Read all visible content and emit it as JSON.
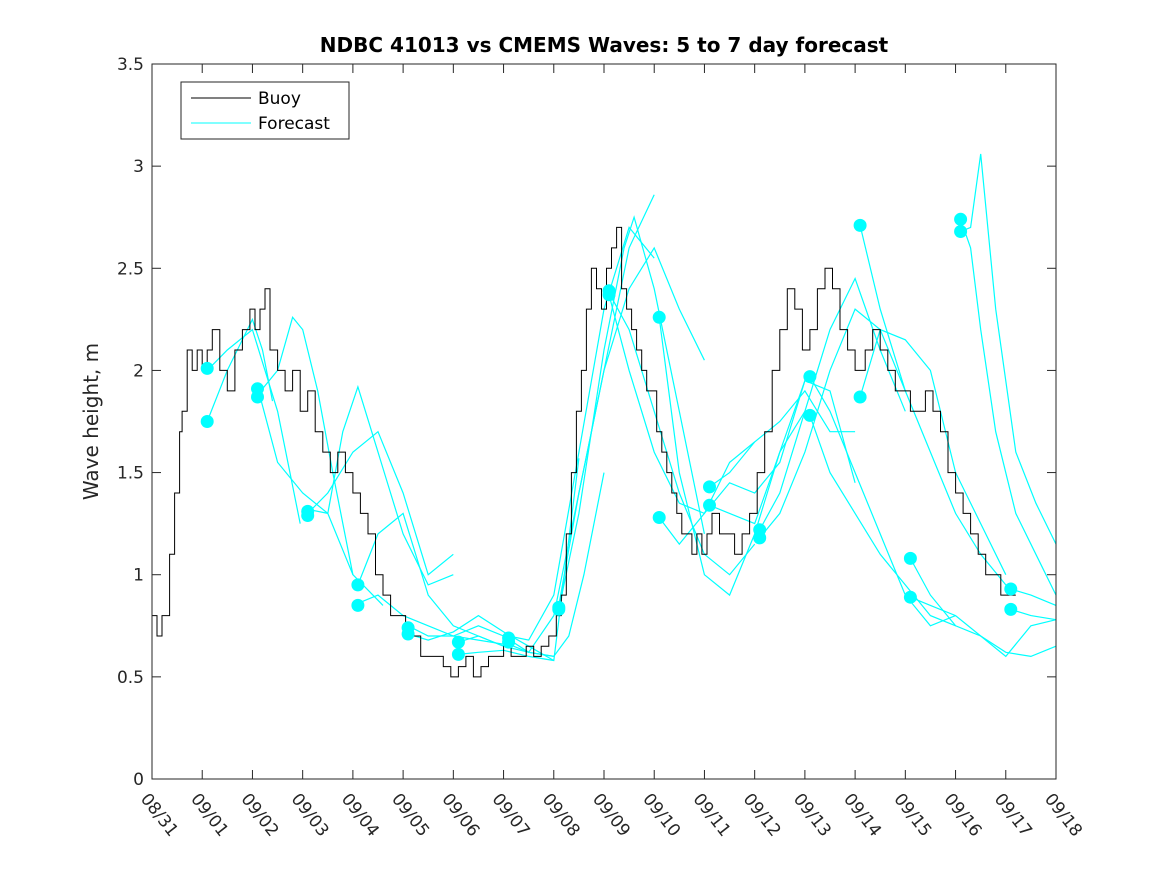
{
  "chart_data": {
    "type": "line",
    "title": "NDBC 41013 vs CMEMS Waves: 5 to 7 day forecast",
    "xlabel": "",
    "ylabel": "Wave height, m",
    "xlim": [
      0,
      18
    ],
    "ylim": [
      0,
      3.5
    ],
    "yticks": [
      0,
      0.5,
      1,
      1.5,
      2,
      2.5,
      3,
      3.5
    ],
    "ytick_labels": [
      "0",
      "0.5",
      "1",
      "1.5",
      "2",
      "2.5",
      "3",
      "3.5"
    ],
    "xticks": [
      0,
      1,
      2,
      3,
      4,
      5,
      6,
      7,
      8,
      9,
      10,
      11,
      12,
      13,
      14,
      15,
      16,
      17,
      18
    ],
    "xtick_labels": [
      "08/31",
      "09/01",
      "09/02",
      "09/03",
      "09/04",
      "09/05",
      "09/06",
      "09/07",
      "09/08",
      "09/09",
      "09/10",
      "09/11",
      "09/12",
      "09/13",
      "09/14",
      "09/15",
      "09/16",
      "09/17",
      "09/18"
    ],
    "legend": {
      "position": "top-left",
      "entries": [
        "Buoy",
        "Forecast"
      ]
    },
    "colors": {
      "buoy": "#000000",
      "forecast": "#00FFFF",
      "axes": "#262626"
    },
    "buoy": {
      "name": "Buoy",
      "x": [
        0,
        0.1,
        0.2,
        0.35,
        0.45,
        0.55,
        0.6,
        0.7,
        0.8,
        0.9,
        1.0,
        1.1,
        1.2,
        1.35,
        1.5,
        1.65,
        1.8,
        1.95,
        2.05,
        2.15,
        2.25,
        2.35,
        2.5,
        2.65,
        2.8,
        2.95,
        3.1,
        3.25,
        3.4,
        3.55,
        3.7,
        3.85,
        4.0,
        4.15,
        4.3,
        4.45,
        4.6,
        4.75,
        4.9,
        5.05,
        5.2,
        5.35,
        5.5,
        5.65,
        5.8,
        5.95,
        6.1,
        6.25,
        6.4,
        6.55,
        6.7,
        6.85,
        7.0,
        7.15,
        7.3,
        7.45,
        7.6,
        7.75,
        7.9,
        8.05,
        8.15,
        8.25,
        8.35,
        8.45,
        8.55,
        8.65,
        8.75,
        8.85,
        8.95,
        9.05,
        9.15,
        9.25,
        9.35,
        9.45,
        9.55,
        9.65,
        9.75,
        9.85,
        9.95,
        10.05,
        10.15,
        10.25,
        10.35,
        10.45,
        10.55,
        10.65,
        10.75,
        10.85,
        10.95,
        11.05,
        11.15,
        11.3,
        11.45,
        11.6,
        11.75,
        11.9,
        12.05,
        12.2,
        12.35,
        12.5,
        12.65,
        12.8,
        12.95,
        13.1,
        13.25,
        13.4,
        13.55,
        13.7,
        13.85,
        14.0,
        14.1,
        14.2,
        14.35,
        14.5,
        14.65,
        14.8,
        14.95,
        15.1,
        15.25,
        15.4,
        15.55,
        15.7,
        15.85,
        16.0,
        16.15,
        16.3,
        16.45,
        16.6,
        16.75,
        16.9,
        17.05,
        17.2
      ],
      "y": [
        0.8,
        0.7,
        0.8,
        1.1,
        1.4,
        1.7,
        1.8,
        2.1,
        2.0,
        2.1,
        2.0,
        2.1,
        2.2,
        2.0,
        1.9,
        2.1,
        2.2,
        2.3,
        2.2,
        2.3,
        2.4,
        2.1,
        2.0,
        1.9,
        2.0,
        1.8,
        1.9,
        1.7,
        1.6,
        1.5,
        1.6,
        1.5,
        1.4,
        1.3,
        1.2,
        1.0,
        0.9,
        0.8,
        0.8,
        0.7,
        0.7,
        0.6,
        0.6,
        0.6,
        0.55,
        0.5,
        0.55,
        0.6,
        0.5,
        0.55,
        0.6,
        0.6,
        0.65,
        0.6,
        0.6,
        0.65,
        0.6,
        0.65,
        0.7,
        0.8,
        0.9,
        1.2,
        1.5,
        1.8,
        2.0,
        2.3,
        2.5,
        2.4,
        2.3,
        2.5,
        2.6,
        2.7,
        2.4,
        2.3,
        2.2,
        2.1,
        2.0,
        1.9,
        1.9,
        1.7,
        1.6,
        1.5,
        1.4,
        1.3,
        1.2,
        1.2,
        1.1,
        1.2,
        1.1,
        1.2,
        1.3,
        1.2,
        1.2,
        1.1,
        1.2,
        1.3,
        1.5,
        1.7,
        2.0,
        2.2,
        2.4,
        2.3,
        2.1,
        2.2,
        2.4,
        2.5,
        2.4,
        2.2,
        2.1,
        2.0,
        2.0,
        2.1,
        2.2,
        2.1,
        2.0,
        1.9,
        1.9,
        1.8,
        1.8,
        1.9,
        1.8,
        1.7,
        1.5,
        1.4,
        1.3,
        1.2,
        1.1,
        1.0,
        1.0,
        0.9,
        0.9,
        0.9
      ]
    },
    "forecast": {
      "name": "Forecast",
      "lines": [
        {
          "x": [
            1.1,
            1.5,
            2.0,
            2.5,
            2.95
          ],
          "y": [
            2.0,
            2.1,
            2.2,
            1.8,
            1.25
          ]
        },
        {
          "x": [
            1.1,
            1.5,
            2.0,
            2.2,
            2.4
          ],
          "y": [
            1.75,
            2.0,
            2.25,
            2.1,
            1.85
          ]
        },
        {
          "x": [
            2.1,
            2.5,
            3.0,
            3.5,
            4.0,
            4.6
          ],
          "y": [
            1.92,
            1.55,
            1.4,
            1.3,
            1.0,
            0.85
          ]
        },
        {
          "x": [
            2.1,
            2.5,
            2.8,
            3.0,
            3.3,
            3.6,
            4.0
          ],
          "y": [
            1.88,
            2.0,
            2.26,
            2.2,
            1.9,
            1.5,
            1.0
          ]
        },
        {
          "x": [
            3.1,
            3.5,
            4.0,
            4.5,
            5.0,
            5.5,
            6.0
          ],
          "y": [
            1.3,
            1.4,
            1.6,
            1.7,
            1.4,
            1.0,
            1.1
          ]
        },
        {
          "x": [
            3.1,
            3.5,
            3.8,
            4.1,
            4.5,
            5.0,
            5.5,
            6.0
          ],
          "y": [
            1.32,
            1.3,
            1.7,
            1.92,
            1.6,
            1.2,
            0.95,
            1.0
          ]
        },
        {
          "x": [
            4.1,
            4.5,
            5.0,
            5.5,
            6.0,
            6.5,
            7.0
          ],
          "y": [
            0.95,
            1.2,
            1.3,
            0.9,
            0.75,
            0.7,
            0.65
          ]
        },
        {
          "x": [
            4.1,
            4.5,
            5.0,
            5.5,
            6.0,
            6.5,
            7.0
          ],
          "y": [
            0.86,
            0.9,
            0.8,
            0.75,
            0.7,
            0.68,
            0.66
          ]
        },
        {
          "x": [
            5.1,
            5.5,
            6.0,
            6.5,
            7.0,
            7.5,
            8.0
          ],
          "y": [
            0.75,
            0.7,
            0.7,
            0.75,
            0.7,
            0.62,
            0.6
          ]
        },
        {
          "x": [
            5.1,
            5.5,
            6.0,
            6.5,
            7.0,
            7.5,
            8.0
          ],
          "y": [
            0.71,
            0.68,
            0.72,
            0.8,
            0.72,
            0.65,
            0.58
          ]
        },
        {
          "x": [
            6.1,
            6.5,
            7.0,
            7.5,
            8.0,
            8.3,
            8.6,
            9.0
          ],
          "y": [
            0.67,
            0.7,
            0.65,
            0.62,
            0.6,
            0.7,
            1.0,
            1.5
          ]
        },
        {
          "x": [
            6.1,
            6.5,
            7.0,
            7.5,
            8.0,
            8.5
          ],
          "y": [
            0.61,
            0.62,
            0.63,
            0.6,
            0.58,
            1.57
          ]
        },
        {
          "x": [
            7.1,
            7.5,
            8.0,
            8.5,
            9.0,
            9.5,
            10.0
          ],
          "y": [
            0.7,
            0.68,
            0.9,
            1.6,
            2.3,
            2.7,
            2.55
          ]
        },
        {
          "x": [
            7.1,
            7.5,
            8.0,
            8.5,
            9.0,
            9.5,
            10.0
          ],
          "y": [
            0.66,
            0.62,
            0.8,
            1.4,
            2.0,
            2.6,
            2.86
          ]
        },
        {
          "x": [
            8.1,
            8.5,
            9.0,
            9.5,
            10.0,
            10.5,
            11.0
          ],
          "y": [
            0.85,
            1.4,
            2.0,
            2.4,
            2.6,
            2.3,
            2.05
          ]
        },
        {
          "x": [
            8.1,
            8.5,
            9.0,
            9.4,
            9.6,
            10.0,
            10.5,
            11.0
          ],
          "y": [
            0.83,
            1.3,
            2.1,
            2.6,
            2.75,
            2.4,
            1.8,
            1.2
          ]
        },
        {
          "x": [
            9.1,
            9.5,
            10.0,
            10.5,
            11.0,
            11.5,
            12.0
          ],
          "y": [
            2.38,
            2.2,
            1.8,
            1.4,
            1.1,
            1.0,
            1.15
          ]
        },
        {
          "x": [
            9.1,
            9.5,
            10.0,
            10.5,
            11.0,
            11.5,
            12.0
          ],
          "y": [
            2.37,
            2.0,
            1.6,
            1.35,
            1.3,
            1.55,
            1.65
          ]
        },
        {
          "x": [
            10.1,
            10.5,
            11.0,
            11.5,
            12.0,
            12.5,
            13.0
          ],
          "y": [
            2.26,
            1.5,
            1.0,
            0.9,
            1.2,
            1.6,
            1.8
          ]
        },
        {
          "x": [
            10.1,
            10.5,
            11.0,
            11.5,
            12.0,
            12.5,
            13.0
          ],
          "y": [
            1.28,
            1.15,
            1.3,
            1.45,
            1.4,
            1.55,
            1.95
          ]
        },
        {
          "x": [
            11.1,
            11.5,
            12.0,
            12.5,
            13.0,
            13.5,
            14.0
          ],
          "y": [
            1.43,
            1.5,
            1.65,
            1.75,
            1.9,
            1.7,
            1.7
          ]
        },
        {
          "x": [
            11.1,
            11.5,
            12.0,
            12.5,
            13.0,
            13.5,
            14.0
          ],
          "y": [
            1.34,
            1.3,
            1.25,
            1.6,
            1.95,
            1.9,
            1.45
          ]
        },
        {
          "x": [
            12.1,
            12.5,
            13.0,
            13.5,
            14.0,
            14.5,
            15.0
          ],
          "y": [
            1.22,
            1.4,
            1.8,
            2.2,
            2.45,
            2.1,
            1.8
          ]
        },
        {
          "x": [
            12.1,
            12.5,
            13.0,
            13.5,
            14.0,
            14.5,
            15.0
          ],
          "y": [
            1.18,
            1.3,
            1.6,
            2.0,
            2.3,
            2.2,
            1.9
          ]
        },
        {
          "x": [
            13.1,
            13.5,
            14.0,
            14.5,
            15.0,
            15.5,
            16.0
          ],
          "y": [
            1.97,
            1.8,
            1.5,
            1.2,
            0.9,
            0.75,
            0.8
          ]
        },
        {
          "x": [
            13.1,
            13.5,
            14.0,
            14.5,
            15.0,
            15.5,
            16.0
          ],
          "y": [
            1.78,
            1.5,
            1.3,
            1.1,
            0.95,
            0.8,
            0.75
          ]
        },
        {
          "x": [
            14.1,
            14.5,
            15.0,
            15.5,
            16.0,
            16.5,
            17.0
          ],
          "y": [
            2.71,
            2.3,
            1.9,
            1.6,
            1.3,
            1.1,
            0.95
          ]
        },
        {
          "x": [
            14.1,
            14.5,
            15.0,
            15.5,
            16.0,
            16.5,
            17.0
          ],
          "y": [
            1.87,
            2.2,
            2.15,
            2.0,
            1.5,
            1.25,
            1.0
          ]
        },
        {
          "x": [
            15.1,
            15.5,
            16.0,
            16.5,
            17.0,
            17.5,
            18.0
          ],
          "y": [
            1.08,
            0.9,
            0.75,
            0.7,
            0.6,
            0.75,
            0.78
          ]
        },
        {
          "x": [
            15.1,
            15.5,
            16.0,
            16.5,
            17.0,
            17.5,
            18.0
          ],
          "y": [
            0.89,
            0.85,
            0.8,
            0.7,
            0.62,
            0.6,
            0.65
          ]
        },
        {
          "x": [
            16.1,
            16.3,
            16.5,
            16.8,
            17.2,
            17.6,
            18.0
          ],
          "y": [
            2.74,
            2.6,
            2.2,
            1.7,
            1.3,
            1.1,
            0.9
          ]
        },
        {
          "x": [
            16.1,
            16.3,
            16.5,
            16.8,
            17.2,
            17.6,
            18.0
          ],
          "y": [
            2.68,
            2.7,
            3.06,
            2.3,
            1.6,
            1.35,
            1.15
          ]
        },
        {
          "x": [
            17.1,
            17.5,
            18.0
          ],
          "y": [
            0.93,
            0.9,
            0.85
          ]
        },
        {
          "x": [
            17.1,
            17.5,
            18.0
          ],
          "y": [
            0.83,
            0.8,
            0.78
          ]
        }
      ],
      "markers": [
        {
          "x": 1.1,
          "y": 2.01
        },
        {
          "x": 1.1,
          "y": 1.75
        },
        {
          "x": 2.1,
          "y": 1.91
        },
        {
          "x": 2.1,
          "y": 1.87
        },
        {
          "x": 3.1,
          "y": 1.31
        },
        {
          "x": 3.1,
          "y": 1.29
        },
        {
          "x": 4.1,
          "y": 0.95
        },
        {
          "x": 4.1,
          "y": 0.85
        },
        {
          "x": 5.1,
          "y": 0.74
        },
        {
          "x": 5.1,
          "y": 0.71
        },
        {
          "x": 6.1,
          "y": 0.67
        },
        {
          "x": 6.1,
          "y": 0.61
        },
        {
          "x": 7.1,
          "y": 0.69
        },
        {
          "x": 7.1,
          "y": 0.67
        },
        {
          "x": 8.1,
          "y": 0.84
        },
        {
          "x": 8.1,
          "y": 0.83
        },
        {
          "x": 9.1,
          "y": 2.39
        },
        {
          "x": 9.1,
          "y": 2.37
        },
        {
          "x": 10.1,
          "y": 2.26
        },
        {
          "x": 10.1,
          "y": 1.28
        },
        {
          "x": 11.1,
          "y": 1.43
        },
        {
          "x": 11.1,
          "y": 1.34
        },
        {
          "x": 12.1,
          "y": 1.22
        },
        {
          "x": 12.1,
          "y": 1.18
        },
        {
          "x": 13.1,
          "y": 1.97
        },
        {
          "x": 13.1,
          "y": 1.78
        },
        {
          "x": 14.1,
          "y": 2.71
        },
        {
          "x": 14.1,
          "y": 1.87
        },
        {
          "x": 15.1,
          "y": 1.08
        },
        {
          "x": 15.1,
          "y": 0.89
        },
        {
          "x": 16.1,
          "y": 2.74
        },
        {
          "x": 16.1,
          "y": 2.68
        },
        {
          "x": 17.1,
          "y": 0.93
        },
        {
          "x": 17.1,
          "y": 0.83
        }
      ]
    }
  }
}
